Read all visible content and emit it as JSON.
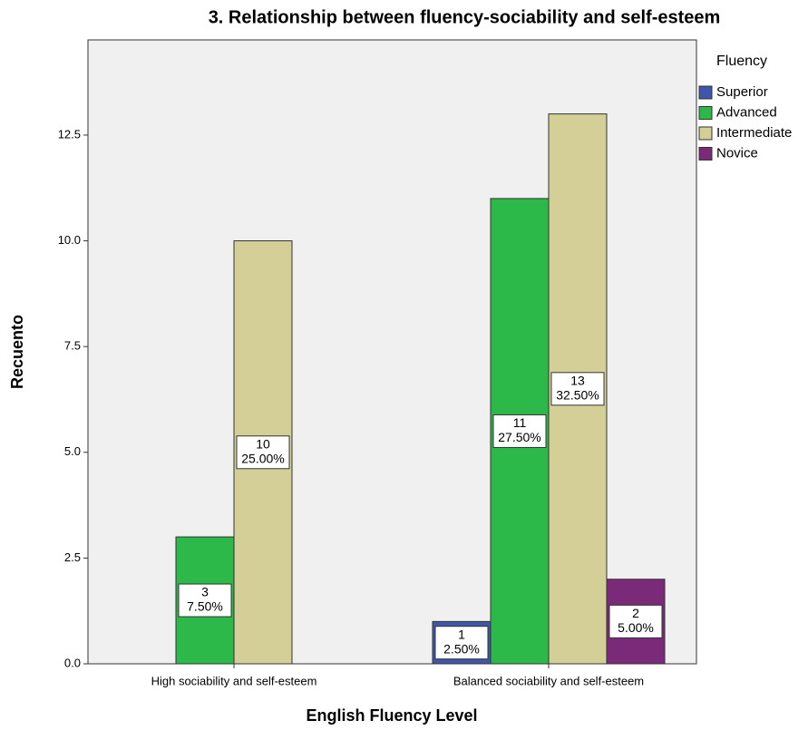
{
  "chart_data": {
    "type": "bar",
    "title": "3. Relationship between fluency-sociability and self-esteem",
    "x_label": "English Fluency Level",
    "y_label": "Recuento",
    "legend_title": "Fluency",
    "legend_position": "right",
    "categories": [
      "High sociability and self-esteem",
      "Balanced sociability and self-esteem"
    ],
    "series": [
      {
        "name": "Superior",
        "color": "#3f57a8",
        "values": [
          null,
          1
        ],
        "percent_labels": [
          null,
          "2.50%"
        ]
      },
      {
        "name": "Advanced",
        "color": "#2db84a",
        "values": [
          3,
          11
        ],
        "percent_labels": [
          "7.50%",
          "27.50%"
        ]
      },
      {
        "name": "Intermediate",
        "color": "#d3cf96",
        "values": [
          10,
          13
        ],
        "percent_labels": [
          "25.00%",
          "32.50%"
        ]
      },
      {
        "name": "Novice",
        "color": "#7b2a7a",
        "values": [
          null,
          2
        ],
        "percent_labels": [
          null,
          "5.00%"
        ]
      }
    ],
    "ylim": [
      0,
      14.75
    ],
    "yticks": [
      {
        "value": 0,
        "label": "0.0"
      },
      {
        "value": 2.5,
        "label": "2.5"
      },
      {
        "value": 5,
        "label": "5.0"
      },
      {
        "value": 7.5,
        "label": "7.5"
      },
      {
        "value": 10,
        "label": "10.0"
      },
      {
        "value": 12.5,
        "label": "12.5"
      }
    ],
    "grid": false
  }
}
